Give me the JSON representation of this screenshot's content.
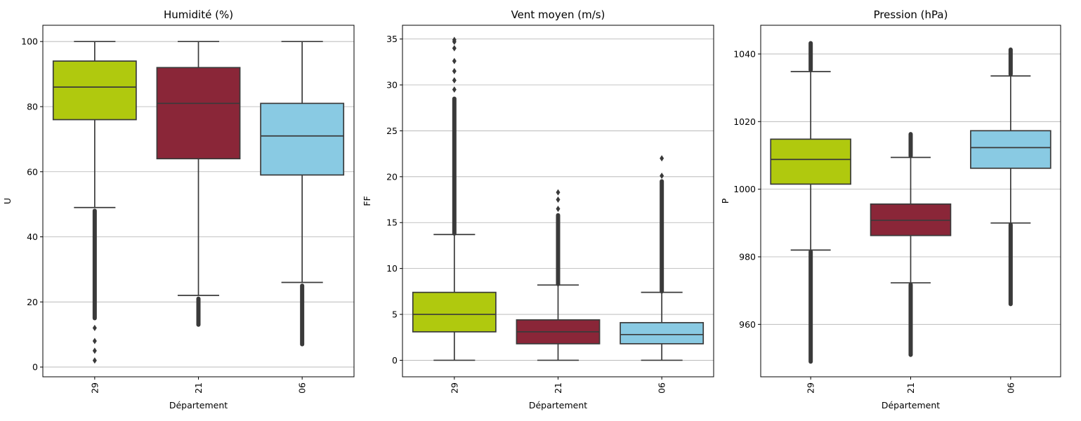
{
  "chart_data": [
    {
      "type": "box",
      "title": "Humidité (%)",
      "xlabel": "Département",
      "ylabel": "U",
      "categories": [
        "29",
        "21",
        "06"
      ],
      "ylim": [
        -3,
        105
      ],
      "yticks": [
        0,
        20,
        40,
        60,
        80,
        100
      ],
      "grid": "y",
      "boxes": [
        {
          "category": "29",
          "color": "#b0c90e",
          "whisker_low": 49,
          "q1": 76,
          "median": 86,
          "q3": 94,
          "whisker_high": 100,
          "outlier_band": [
            15,
            48
          ],
          "outliers": [
            12,
            8,
            5,
            2
          ]
        },
        {
          "category": "21",
          "color": "#8a2638",
          "whisker_low": 22,
          "q1": 64,
          "median": 81,
          "q3": 92,
          "whisker_high": 100,
          "outlier_band": [
            13,
            21
          ],
          "outliers": []
        },
        {
          "category": "06",
          "color": "#89cae3",
          "whisker_low": 26,
          "q1": 59,
          "median": 71,
          "q3": 81,
          "whisker_high": 100,
          "outlier_band": [
            7,
            25
          ],
          "outliers": []
        }
      ]
    },
    {
      "type": "box",
      "title": "Vent moyen (m/s)",
      "xlabel": "Département",
      "ylabel": "FF",
      "categories": [
        "29",
        "21",
        "06"
      ],
      "ylim": [
        -1.8,
        36.5
      ],
      "yticks": [
        0,
        5,
        10,
        15,
        20,
        25,
        30,
        35
      ],
      "grid": "y",
      "boxes": [
        {
          "category": "29",
          "color": "#b0c90e",
          "whisker_low": 0,
          "q1": 3.1,
          "median": 5.0,
          "q3": 7.4,
          "whisker_high": 13.7,
          "outlier_band": [
            13.8,
            28.5
          ],
          "outliers": [
            29.5,
            30.5,
            31.5,
            32.6,
            34.0,
            34.7,
            34.9
          ]
        },
        {
          "category": "21",
          "color": "#8a2638",
          "whisker_low": 0,
          "q1": 1.8,
          "median": 3.1,
          "q3": 4.4,
          "whisker_high": 8.2,
          "outlier_band": [
            8.3,
            15.8
          ],
          "outliers": [
            16.5,
            17.5,
            18.3
          ]
        },
        {
          "category": "06",
          "color": "#89cae3",
          "whisker_low": 0,
          "q1": 1.8,
          "median": 2.8,
          "q3": 4.1,
          "whisker_high": 7.4,
          "outlier_band": [
            7.5,
            19.5
          ],
          "outliers": [
            20.1,
            22.0
          ]
        }
      ]
    },
    {
      "type": "box",
      "title": "Pression (hPa)",
      "xlabel": "Département",
      "ylabel": "P",
      "categories": [
        "29",
        "21",
        "06"
      ],
      "ylim": [
        944.5,
        1048.5
      ],
      "yticks": [
        960,
        980,
        1000,
        1020,
        1040
      ],
      "grid": "y",
      "boxes": [
        {
          "category": "29",
          "color": "#b0c90e",
          "whisker_low": 982,
          "q1": 1001.5,
          "median": 1008.8,
          "q3": 1014.8,
          "whisker_high": 1034.8,
          "outlier_band_low": [
            949,
            981.5
          ],
          "outlier_band_high": [
            1035.3,
            1043.2
          ]
        },
        {
          "category": "21",
          "color": "#8a2638",
          "whisker_low": 972.3,
          "q1": 986.3,
          "median": 990.8,
          "q3": 995.6,
          "whisker_high": 1009.4,
          "outlier_band_low": [
            951,
            971.8
          ],
          "outlier_band_high": [
            1009.8,
            1016.3
          ]
        },
        {
          "category": "06",
          "color": "#89cae3",
          "whisker_low": 990,
          "q1": 1006.2,
          "median": 1012.3,
          "q3": 1017.3,
          "whisker_high": 1033.5,
          "outlier_band_low": [
            966,
            989.5
          ],
          "outlier_band_high": [
            1034,
            1041.3
          ]
        }
      ]
    }
  ]
}
